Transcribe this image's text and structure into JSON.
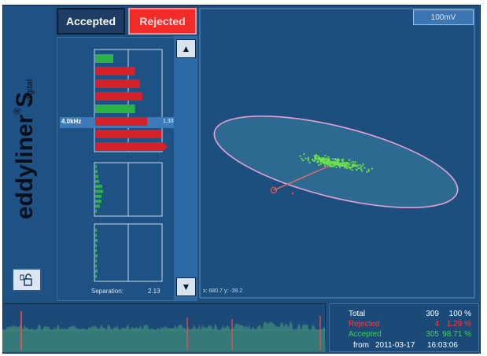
{
  "brand": {
    "name": "eddyliner",
    "reg": "®",
    "model": "S",
    "sub": "digital"
  },
  "tabs": {
    "accepted": "Accepted",
    "rejected": "Rejected"
  },
  "plot": {
    "scale_label": "100mV",
    "coord": "x: 680.7 y: -39.2"
  },
  "bars": {
    "selected_label": "4.0kHz",
    "selected_value": "1.33",
    "separation_label": "Separation:",
    "separation_value": "2.13",
    "group1_fraction": [
      0.25,
      0.55,
      0.62,
      0.65,
      0.55,
      0.72,
      0.92,
      1.0
    ],
    "group1_status": [
      "accepted",
      "rejected",
      "rejected",
      "rejected",
      "accepted",
      "rejected",
      "rejected",
      "rejected"
    ]
  },
  "stats": {
    "total_label": "Total",
    "total_count": "309",
    "total_pct": "100 %",
    "rejected_label": "Rejected",
    "rejected_count": "4",
    "rejected_pct": "1.29 %",
    "accepted_label": "Accepted",
    "accepted_count": "305",
    "accepted_pct": "98.71 %",
    "from_label": "from",
    "from_date": "2011-03-17",
    "from_time": "16:03:06"
  },
  "colors": {
    "accepted": "#2bb348",
    "rejected": "#d6202a",
    "ellipse": "#e6a0d8",
    "points": "#6fe04a"
  },
  "icons": {
    "lock": "lock-open-icon",
    "scroll_up": "arrow-up-icon",
    "scroll_down": "arrow-down-icon"
  }
}
